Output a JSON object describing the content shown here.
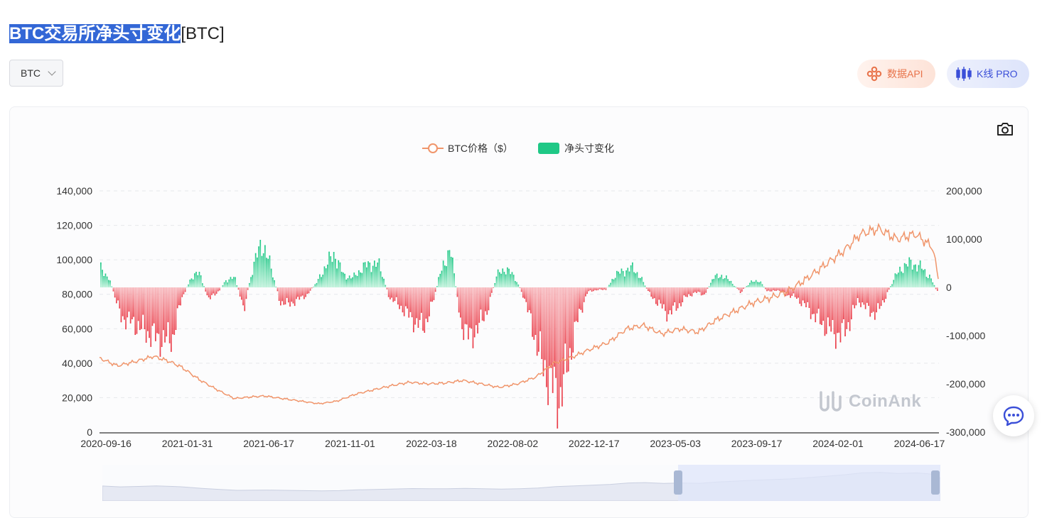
{
  "header": {
    "title_highlight": "BTC交易所净头寸变化",
    "title_suffix": "[BTC]"
  },
  "coin_select": {
    "value": "BTC"
  },
  "buttons": {
    "api_label": "数据API",
    "kline_label": "K线 PRO"
  },
  "watermark": "CoinAnk",
  "colors": {
    "price_line": "#f0956b",
    "positive": "#1fc886",
    "negative": "#ea3a46",
    "highlight": "#3367d6",
    "accent_blue": "#3b4fd8",
    "accent_orange": "#e8734a"
  },
  "icons": {
    "camera": "camera-icon",
    "api": "api-icon",
    "kline": "candlestick-icon",
    "chat": "chat-icon",
    "chevron": "chevron-down-icon"
  },
  "chart_data": {
    "type": "bar",
    "legend": [
      {
        "name": "BTC价格（$）",
        "color": "#f0956b",
        "style": "line-circle"
      },
      {
        "name": "净头寸变化",
        "color": "#1fc886",
        "style": "rect"
      }
    ],
    "legend_placement": "top-center",
    "x_ticks": [
      "2020-09-16",
      "2021-01-31",
      "2021-06-17",
      "2021-11-01",
      "2022-03-18",
      "2022-08-02",
      "2022-12-17",
      "2023-05-03",
      "2023-09-17",
      "2024-02-01",
      "2024-06-17"
    ],
    "x_range": [
      "2020-09-05",
      "2024-07-20"
    ],
    "left_axis": {
      "ticks": [
        0,
        20000,
        40000,
        60000,
        80000,
        100000,
        120000,
        140000
      ],
      "labels": [
        "0",
        "20,000",
        "40,000",
        "60,000",
        "80,000",
        "100,000",
        "120,000",
        "140,000"
      ],
      "range": [
        0,
        140000
      ]
    },
    "right_axis": {
      "ticks": [
        -300000,
        -200000,
        -100000,
        0,
        100000,
        200000
      ],
      "labels": [
        "-300,000",
        "-200,000",
        "-100,000",
        "0",
        "100,000",
        "200,000"
      ],
      "range": [
        -300000,
        200000
      ]
    },
    "grid": "horizontal-dashed",
    "series": [
      {
        "name": "BTC价格（$）",
        "type": "line",
        "axis": "left",
        "x": [
          "2020-09-05",
          "2020-10-05",
          "2020-11-05",
          "2020-12-05",
          "2021-01-01",
          "2021-01-20",
          "2021-02-20",
          "2021-03-20",
          "2021-04-20",
          "2021-05-20",
          "2021-06-10",
          "2021-07-10",
          "2021-08-10",
          "2021-09-10",
          "2021-10-10",
          "2021-11-10",
          "2021-12-10",
          "2022-01-10",
          "2022-02-10",
          "2022-03-10",
          "2022-04-10",
          "2022-05-10",
          "2022-06-10",
          "2022-07-10",
          "2022-08-10",
          "2022-09-10",
          "2022-10-10",
          "2022-11-10",
          "2022-12-10",
          "2023-01-10",
          "2023-02-10",
          "2023-03-10",
          "2023-04-10",
          "2023-05-10",
          "2023-06-10",
          "2023-07-10",
          "2023-08-10",
          "2023-09-10",
          "2023-10-10",
          "2023-11-10",
          "2023-12-10",
          "2024-01-10",
          "2024-02-10",
          "2024-03-10",
          "2024-04-10",
          "2024-05-10",
          "2024-06-10",
          "2024-07-10",
          "2024-07-20"
        ],
        "values": [
          43000,
          38500,
          41000,
          44000,
          41000,
          38000,
          30500,
          25000,
          19500,
          20500,
          21000,
          19500,
          18000,
          16500,
          18000,
          22000,
          24500,
          27000,
          29000,
          28000,
          28500,
          30000,
          28000,
          26000,
          28000,
          32000,
          40000,
          43500,
          48000,
          52000,
          60000,
          62000,
          57000,
          60000,
          58000,
          65000,
          70000,
          75000,
          78000,
          82000,
          89000,
          97000,
          105000,
          115000,
          118000,
          112000,
          115000,
          107000,
          86000
        ]
      },
      {
        "name": "净头寸变化",
        "type": "bar",
        "axis": "right",
        "x": [
          "2020-09-05",
          "2020-09-20",
          "2020-10-10",
          "2020-11-01",
          "2020-11-25",
          "2020-12-20",
          "2021-01-05",
          "2021-01-20",
          "2021-02-05",
          "2021-02-20",
          "2021-03-05",
          "2021-03-20",
          "2021-04-05",
          "2021-04-20",
          "2021-05-05",
          "2021-05-20",
          "2021-06-05",
          "2021-06-20",
          "2021-07-05",
          "2021-07-20",
          "2021-08-05",
          "2021-08-20",
          "2021-09-05",
          "2021-09-20",
          "2021-10-05",
          "2021-10-20",
          "2021-11-05",
          "2021-11-20",
          "2021-12-05",
          "2021-12-20",
          "2022-01-05",
          "2022-01-20",
          "2022-02-05",
          "2022-02-20",
          "2022-03-05",
          "2022-03-20",
          "2022-04-05",
          "2022-04-20",
          "2022-05-05",
          "2022-05-20",
          "2022-06-05",
          "2022-06-20",
          "2022-07-05",
          "2022-07-20",
          "2022-08-05",
          "2022-08-20",
          "2022-09-05",
          "2022-09-20",
          "2022-10-05",
          "2022-10-20",
          "2022-11-05",
          "2022-11-20",
          "2022-12-05",
          "2022-12-20",
          "2023-01-05",
          "2023-01-20",
          "2023-02-05",
          "2023-02-20",
          "2023-03-05",
          "2023-03-20",
          "2023-04-05",
          "2023-04-20",
          "2023-05-05",
          "2023-05-20",
          "2023-06-05",
          "2023-06-20",
          "2023-07-05",
          "2023-07-20",
          "2023-08-05",
          "2023-08-20",
          "2023-09-05",
          "2023-09-20",
          "2023-10-05",
          "2023-10-20",
          "2023-11-05",
          "2023-11-20",
          "2023-12-05",
          "2023-12-20",
          "2024-01-05",
          "2024-01-20",
          "2024-02-05",
          "2024-02-20",
          "2024-03-05",
          "2024-03-20",
          "2024-04-05",
          "2024-04-20",
          "2024-05-05",
          "2024-05-20",
          "2024-06-05",
          "2024-06-20",
          "2024-07-05",
          "2024-07-20"
        ],
        "values": [
          40000,
          20000,
          -60000,
          -75000,
          -95000,
          -110000,
          -105000,
          -25000,
          20000,
          30000,
          -20000,
          -15000,
          15000,
          20000,
          -45000,
          40000,
          95000,
          40000,
          -30000,
          -35000,
          -25000,
          -15000,
          10000,
          45000,
          70000,
          25000,
          20000,
          40000,
          50000,
          45000,
          -20000,
          -35000,
          -55000,
          -75000,
          -80000,
          -30000,
          50000,
          70000,
          -70000,
          -105000,
          -80000,
          -45000,
          25000,
          40000,
          20000,
          -20000,
          -90000,
          -160000,
          -200000,
          -230000,
          -140000,
          -60000,
          -10000,
          -5000,
          -5000,
          25000,
          35000,
          40000,
          20000,
          -15000,
          -35000,
          -55000,
          -40000,
          -20000,
          -10000,
          -15000,
          20000,
          25000,
          10000,
          -10000,
          10000,
          15000,
          -10000,
          -5000,
          -15000,
          -20000,
          -35000,
          -55000,
          -75000,
          -90000,
          -100000,
          -70000,
          -25000,
          -45000,
          -55000,
          -20000,
          20000,
          45000,
          50000,
          40000,
          20000,
          -20000
        ]
      }
    ]
  }
}
